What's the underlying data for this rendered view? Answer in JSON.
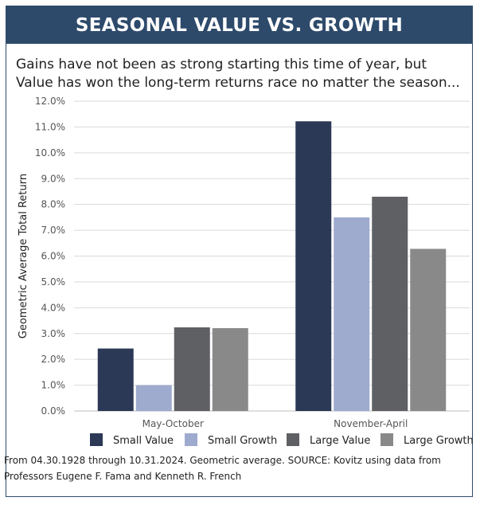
{
  "banner": {
    "title": "SEASONAL VALUE VS. GROWTH"
  },
  "subtitle": {
    "line1": "Gains have not been as strong starting this time of year, but",
    "line2": "Value has won the long-term returns race no matter the season..."
  },
  "footer": {
    "line1": "From 04.30.1928 through 10.31.2024. Geometric average. SOURCE: Kovitz using data from",
    "line2": "Professors Eugene F. Fama and Kenneth R. French"
  },
  "chart_data": {
    "type": "bar",
    "title": "Gains have not been as strong starting this time of year, but Value has won the long-term returns race no matter the season...",
    "xlabel": "",
    "ylabel": "Geometric Average Total Return",
    "ylim": [
      0,
      12
    ],
    "yticks": [
      0,
      1,
      2,
      3,
      4,
      5,
      6,
      7,
      8,
      9,
      10,
      11,
      12
    ],
    "ytick_labels": [
      "0.0%",
      "1.0%",
      "2.0%",
      "3.0%",
      "4.0%",
      "5.0%",
      "6.0%",
      "7.0%",
      "8.0%",
      "9.0%",
      "10.0%",
      "11.0%",
      "12.0%"
    ],
    "grid": true,
    "legend_position": "bottom",
    "categories": [
      "May-October",
      "November-April"
    ],
    "series": [
      {
        "name": "Small Value",
        "color": "#2b3956",
        "values": [
          2.42,
          11.22
        ]
      },
      {
        "name": "Small Growth",
        "color": "#9eaace",
        "values": [
          1.0,
          7.5
        ]
      },
      {
        "name": "Large Value",
        "color": "#5f6063",
        "values": [
          3.24,
          8.3
        ]
      },
      {
        "name": "Large Growth",
        "color": "#898989",
        "values": [
          3.21,
          6.28
        ]
      }
    ]
  }
}
